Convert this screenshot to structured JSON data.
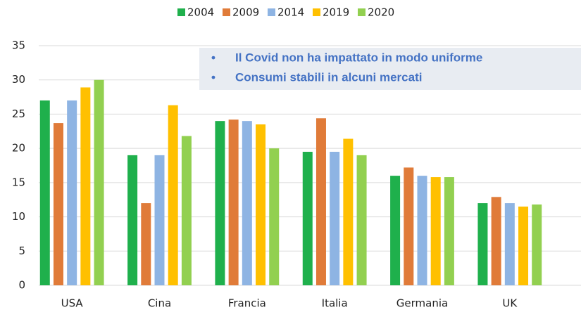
{
  "chart_data": {
    "type": "bar",
    "categories": [
      "USA",
      "Cina",
      "Francia",
      "Italia",
      "Germania",
      "UK"
    ],
    "series": [
      {
        "name": "2004",
        "color": "#1fb04c",
        "values": [
          27,
          19,
          24,
          19.5,
          16,
          12
        ]
      },
      {
        "name": "2009",
        "color": "#e07b39",
        "values": [
          23.7,
          12,
          24.2,
          24.4,
          17.2,
          12.9
        ]
      },
      {
        "name": "2014",
        "color": "#8eb4e3",
        "values": [
          27,
          19,
          24,
          19.5,
          16,
          12
        ]
      },
      {
        "name": "2019",
        "color": "#ffc000",
        "values": [
          28.9,
          26.3,
          23.5,
          21.4,
          15.8,
          11.5
        ]
      },
      {
        "name": "2020",
        "color": "#92d050",
        "values": [
          30,
          21.8,
          20,
          19,
          15.8,
          11.8
        ]
      }
    ],
    "ylim": [
      0,
      35
    ],
    "yticks": [
      0,
      5,
      10,
      15,
      20,
      25,
      30,
      35
    ],
    "grid": true,
    "annotations": [
      "Il Covid non ha impattato in modo uniforme",
      "Consumi stabili in alcuni mercati"
    ]
  }
}
